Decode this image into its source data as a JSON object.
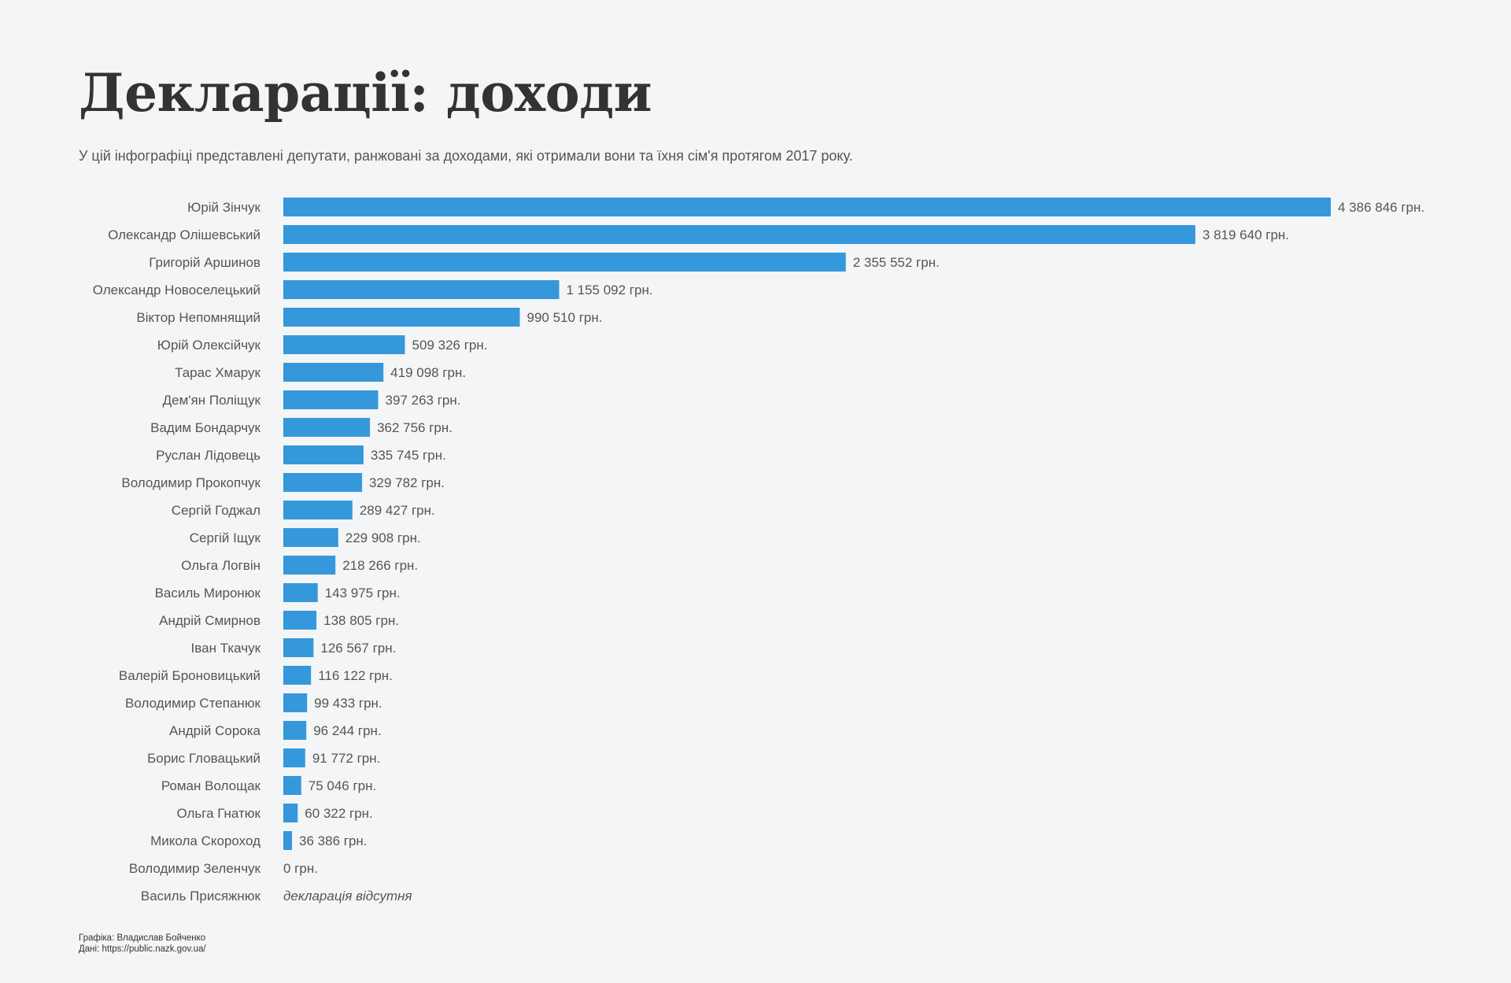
{
  "header": {
    "title": "Декларації: доходи",
    "subtitle": "У цій інфографіці представлені депутати, ранжовані за доходами, які отримали вони та їхня сім'я протягом 2017 року."
  },
  "chart_data": {
    "type": "bar",
    "orientation": "horizontal",
    "bar_color": "#3598db",
    "categories": [
      "Юрій Зінчук",
      "Олександр Олішевський",
      "Григорій Аршинов",
      "Олександр Новоселецький",
      "Віктор Непомнящий",
      "Юрій Олексійчук",
      "Тарас Хмарук",
      "Дем'ян Поліщук",
      "Вадим Бондарчук",
      "Руслан Лідовець",
      "Володимир Прокопчук",
      "Сергій Годжал",
      "Сергій Іщук",
      "Ольга Логвін",
      "Василь Миронюк",
      "Андрій Смирнов",
      "Іван Ткачук",
      "Валерій Броновицький",
      "Володимир Степанюк",
      "Андрій Сорока",
      "Борис Гловацький",
      "Роман Волощак",
      "Ольга Гнатюк",
      "Микола Скороход",
      "Володимир Зеленчук",
      "Василь Присяжнюк"
    ],
    "values": [
      4386846,
      3819640,
      2355552,
      1155092,
      990510,
      509326,
      419098,
      397263,
      362756,
      335745,
      329782,
      289427,
      229908,
      218266,
      143975,
      138805,
      126567,
      116122,
      99433,
      96244,
      91772,
      75046,
      60322,
      36386,
      0,
      null
    ],
    "value_labels": [
      "4 386 846 грн.",
      "3 819 640 грн.",
      "2 355 552 грн.",
      "1 155 092 грн.",
      "990 510 грн.",
      "509 326 грн.",
      "419 098 грн.",
      "397 263 грн.",
      "362 756 грн.",
      "335 745 грн.",
      "329 782 грн.",
      "289 427 грн.",
      "229 908 грн.",
      "218 266 грн.",
      "143 975 грн.",
      "138 805 грн.",
      "126 567 грн.",
      "116 122 грн.",
      "99 433 грн.",
      "96 244 грн.",
      "91 772 грн.",
      "75 046 грн.",
      "60 322 грн.",
      "36 386 грн.",
      "0 грн.",
      "декларація відсутня"
    ]
  },
  "footer": {
    "graphics": "Графіка: Владислав Бойченко",
    "source": "Дані: https://public.nazk.gov.ua/"
  }
}
